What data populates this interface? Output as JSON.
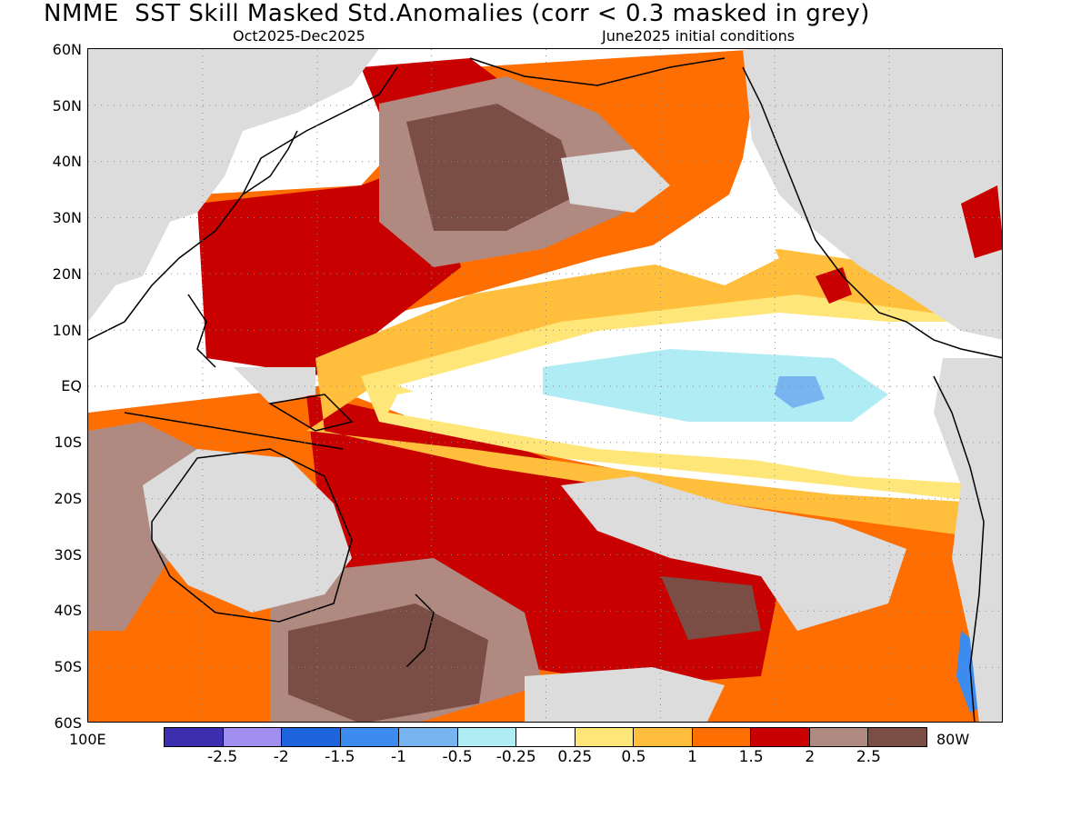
{
  "header": {
    "title": "NMME  SST Skill Masked Std.Anomalies (corr < 0.3 masked in grey)",
    "period": "Oct2025-Dec2025",
    "initial_conditions": "June2025 initial conditions"
  },
  "axes": {
    "lat_labels": [
      "60N",
      "50N",
      "40N",
      "30N",
      "20N",
      "10N",
      "EQ",
      "10S",
      "20S",
      "30S",
      "40S",
      "50S",
      "60S"
    ],
    "lon_left": "100E",
    "lon_right": "80W"
  },
  "colors": {
    "land": "#000000",
    "mask_grey": "#dcdcdc",
    "neg_2_5": "#3b2fb0",
    "neg_2": "#a08ff0",
    "neg_1_5": "#1e64dc",
    "neg_1": "#3c8cf0",
    "neg_0_5": "#78b4f0",
    "neg_0_25": "#b0ecf4",
    "neutral": "#ffffff",
    "pos_0_25": "#ffe678",
    "pos_0_5": "#ffbe3c",
    "pos_1": "#ff6e00",
    "pos_1_5": "#c80000",
    "pos_2": "#b08a80",
    "pos_2_5": "#7a4e45"
  },
  "colorbar": {
    "segments": [
      "#3b2fb0",
      "#a08ff0",
      "#1e64dc",
      "#3c8cf0",
      "#78b4f0",
      "#b0ecf4",
      "#ffffff",
      "#ffe678",
      "#ffbe3c",
      "#ff6e00",
      "#c80000",
      "#b08a80",
      "#7a4e45"
    ],
    "labels": [
      "-2.5",
      "-2",
      "-1.5",
      "-1",
      "-0.5",
      "-0.25",
      "0.25",
      "0.5",
      "1",
      "1.5",
      "2",
      "2.5"
    ]
  }
}
